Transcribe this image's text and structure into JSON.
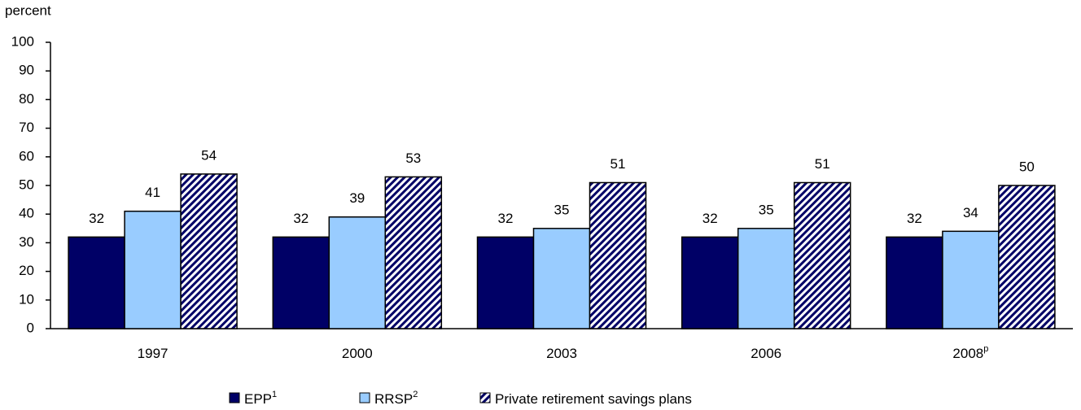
{
  "chart_data": {
    "type": "bar",
    "y_axis_label": "percent",
    "categories": [
      "1997",
      "2000",
      "2003",
      "2006",
      "2008"
    ],
    "category_notes": [
      null,
      null,
      null,
      null,
      "p"
    ],
    "series": [
      {
        "name": "EPP",
        "note": "1",
        "color": "#000066",
        "values": [
          32,
          32,
          32,
          32,
          32
        ]
      },
      {
        "name": "RRSP",
        "note": "2",
        "color": "#99ccff",
        "values": [
          41,
          39,
          35,
          35,
          34
        ]
      },
      {
        "name": "Private retirement savings plans",
        "color": "#000066",
        "pattern": "hatch",
        "values": [
          54,
          53,
          51,
          51,
          50
        ]
      }
    ],
    "ylim": [
      0,
      100
    ],
    "yticks": [
      0,
      10,
      20,
      30,
      40,
      50,
      60,
      70,
      80,
      90,
      100
    ],
    "grid": false,
    "data_labels": true
  }
}
